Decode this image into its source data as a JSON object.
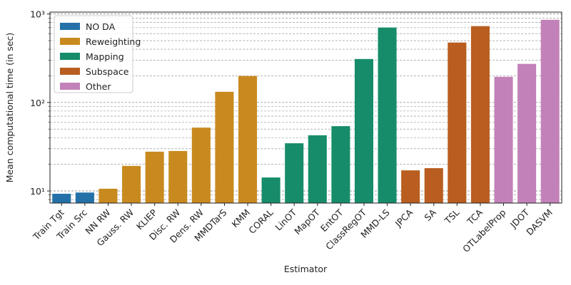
{
  "chart_data": {
    "type": "bar",
    "xlabel": "Estimator",
    "ylabel": "Mean computational time (in sec)",
    "categories": [
      "Train Tgt",
      "Train Src",
      "NN RW",
      "Gauss. RW",
      "KLIEP",
      "Disc. RW",
      "Dens. RW",
      "MMDTarS",
      "KMM",
      "CORAL",
      "LinOT",
      "MapOT",
      "EntOT",
      "ClassRegOT",
      "MMD-LS",
      "JPCA",
      "SA",
      "TSL",
      "TCA",
      "OTLabelProp",
      "JDOT",
      "DASVM"
    ],
    "series": [
      {
        "name": "NO DA",
        "color": "#2371a8",
        "values": [
          9.3,
          9.6,
          null,
          null,
          null,
          null,
          null,
          null,
          null,
          null,
          null,
          null,
          null,
          null,
          null,
          null,
          null,
          null,
          null,
          null,
          null,
          null
        ]
      },
      {
        "name": "Reweighting",
        "color": "#c88a1f",
        "values": [
          null,
          null,
          10.6,
          19.2,
          27.8,
          28.3,
          52,
          132,
          199,
          null,
          null,
          null,
          null,
          null,
          null,
          null,
          null,
          null,
          null,
          null,
          null,
          null
        ]
      },
      {
        "name": "Mapping",
        "color": "#178c6b",
        "values": [
          null,
          null,
          null,
          null,
          null,
          null,
          null,
          null,
          null,
          14.2,
          34.6,
          42.6,
          54,
          310,
          703,
          null,
          null,
          null,
          null,
          null,
          null,
          null
        ]
      },
      {
        "name": "Subspace",
        "color": "#b95e20",
        "values": [
          null,
          null,
          null,
          null,
          null,
          null,
          null,
          null,
          null,
          null,
          null,
          null,
          null,
          null,
          null,
          17.1,
          18.1,
          476,
          729,
          null,
          null,
          null
        ]
      },
      {
        "name": "Other",
        "color": "#c282b9",
        "values": [
          null,
          null,
          null,
          null,
          null,
          null,
          null,
          null,
          null,
          null,
          null,
          null,
          null,
          null,
          null,
          null,
          null,
          null,
          null,
          195,
          273,
          860
        ]
      }
    ],
    "log_scale": true,
    "ylim": [
      7.3,
      1050
    ],
    "yticks": [
      {
        "value": 10,
        "label": "10¹"
      },
      {
        "value": 100,
        "label": "10²"
      },
      {
        "value": 1000,
        "label": "10³"
      }
    ],
    "yminorticks": [
      8,
      9,
      20,
      30,
      40,
      50,
      60,
      70,
      80,
      90,
      200,
      300,
      400,
      500,
      600,
      700,
      800,
      900
    ],
    "grid": true,
    "legend": "upper-left"
  }
}
